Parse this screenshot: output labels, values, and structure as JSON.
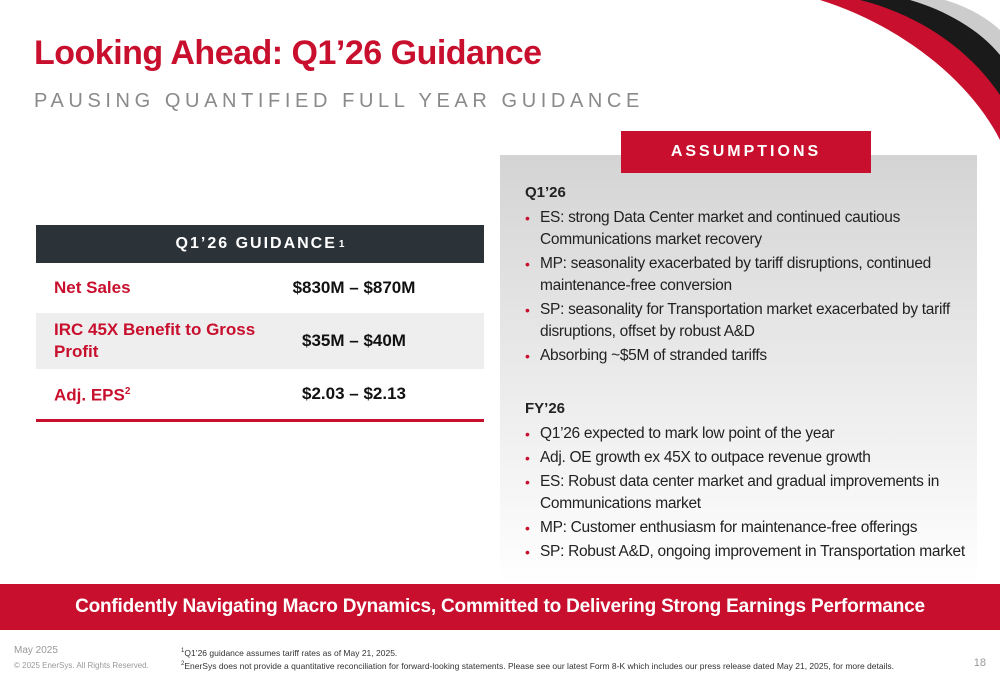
{
  "header": {
    "title": "Looking Ahead: Q1’26 Guidance",
    "subtitle": "PAUSING QUANTIFIED FULL YEAR GUIDANCE"
  },
  "guidance": {
    "header_label": "Q1’26 GUIDANCE",
    "header_sup": "1",
    "rows": [
      {
        "label": "Net Sales",
        "sup": "",
        "value": "$830M – $870M"
      },
      {
        "label": "IRC 45X Benefit to Gross Profit",
        "sup": "",
        "value": "$35M – $40M"
      },
      {
        "label": "Adj. EPS",
        "sup": "2",
        "value": "$2.03 – $2.13"
      }
    ]
  },
  "assumptions": {
    "badge": "ASSUMPTIONS",
    "q1": {
      "heading": "Q1’26",
      "bullets": [
        "ES: strong Data Center market and continued cautious Communications market recovery",
        "MP: seasonality exacerbated by tariff disruptions, continued maintenance-free conversion",
        "SP: seasonality for Transportation market exacerbated by tariff disruptions, offset by robust A&D",
        "Absorbing ~$5M of stranded tariffs"
      ]
    },
    "fy": {
      "heading": "FY’26",
      "bullets": [
        "Q1’26 expected to mark low point of the year",
        "Adj. OE growth ex 45X to outpace revenue growth",
        "ES: Robust data center market and gradual improvements in Communications market",
        "MP: Customer enthusiasm for maintenance-free offerings",
        "SP: Robust A&D, ongoing improvement in Transportation market"
      ]
    }
  },
  "banner": {
    "text": "Confidently Navigating Macro Dynamics, Committed to Delivering Strong Earnings Performance"
  },
  "footer": {
    "date": "May 2025",
    "copyright": "© 2025 EnerSys. All Rights Reserved.",
    "note1_sup": "1",
    "note1": "Q1’26 guidance assumes tariff rates as of May 21, 2025.",
    "note2_sup": "2",
    "note2": "EnerSys does not provide a quantitative reconciliation for forward-looking statements. Please see our latest Form 8-K which includes our press release dated May 21, 2025, for more details.",
    "page": "18"
  },
  "colors": {
    "accent": "#c8102e",
    "dark": "#2b3339",
    "gray": "#8a8a8a"
  }
}
